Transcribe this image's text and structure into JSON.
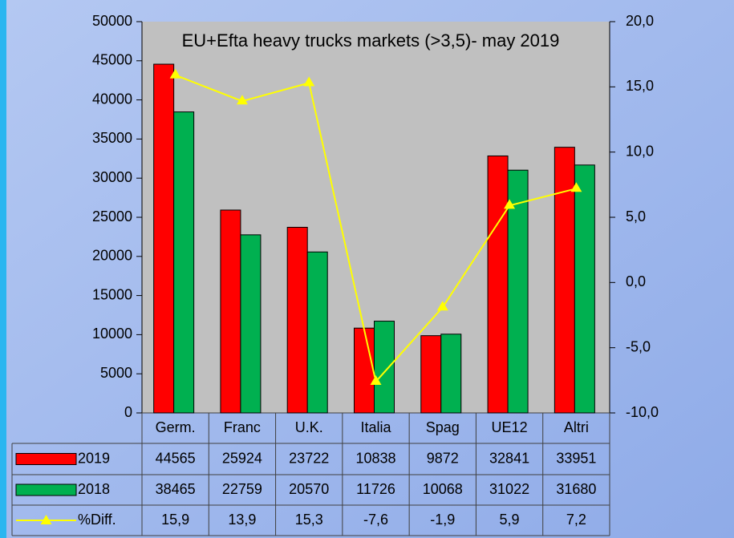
{
  "chart_data": {
    "type": "bar",
    "title": "EU+Efta heavy trucks markets (>3,5)- may 2019",
    "categories": [
      "Germ.",
      "Franc",
      "U.K.",
      "Italia",
      "Spag",
      "UE12",
      "Altri"
    ],
    "series": [
      {
        "name": "2019",
        "color": "#ff0000",
        "values": [
          44565,
          25924,
          23722,
          10838,
          9872,
          32841,
          33951
        ]
      },
      {
        "name": "2018",
        "color": "#00b050",
        "values": [
          38465,
          22759,
          20570,
          11726,
          10068,
          31022,
          31680
        ]
      },
      {
        "name": "%Diff.",
        "type": "line",
        "axis": "y2",
        "color": "#ffff00",
        "values": [
          15.9,
          13.9,
          15.3,
          -7.6,
          -1.9,
          5.9,
          7.2
        ],
        "value_labels": [
          "15,9",
          "13,9",
          "15,3",
          "-7,6",
          "-1,9",
          "5,9",
          "7,2"
        ]
      }
    ],
    "ylim": [
      0,
      50000
    ],
    "yticks": [
      0,
      5000,
      10000,
      15000,
      20000,
      25000,
      30000,
      35000,
      40000,
      45000,
      50000
    ],
    "y2lim": [
      -10,
      20
    ],
    "y2ticks": [
      {
        "value": -10,
        "label": "-10,0"
      },
      {
        "value": -5,
        "label": "-5,0"
      },
      {
        "value": 0,
        "label": "0,0"
      },
      {
        "value": 5,
        "label": "5,0"
      },
      {
        "value": 10,
        "label": "10,0"
      },
      {
        "value": 15,
        "label": "15,0"
      },
      {
        "value": 20,
        "label": "20,0"
      }
    ],
    "grid": false
  }
}
